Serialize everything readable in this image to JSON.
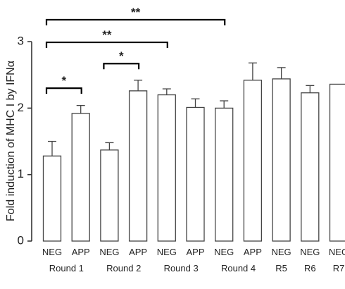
{
  "chart_data": {
    "type": "bar",
    "ylabel": "Fold induction of MHC I by IFNα",
    "ylim": [
      0,
      3
    ],
    "yticks": [
      0,
      1,
      2,
      3
    ],
    "categories": [
      "NEG",
      "APP",
      "NEG",
      "APP",
      "NEG",
      "APP",
      "NEG",
      "APP",
      "NEG",
      "NEG",
      "NEG"
    ],
    "values": [
      1.28,
      1.92,
      1.37,
      2.26,
      2.2,
      2.01,
      2.0,
      2.42,
      2.44,
      2.23,
      2.36
    ],
    "errors": [
      0.22,
      0.12,
      0.11,
      0.16,
      0.09,
      0.13,
      0.11,
      0.26,
      0.17,
      0.11,
      0
    ],
    "groups": [
      {
        "label": "Round 1",
        "start": 0,
        "end": 1
      },
      {
        "label": "Round 2",
        "start": 2,
        "end": 3
      },
      {
        "label": "Round 3",
        "start": 4,
        "end": 5
      },
      {
        "label": "Round 4",
        "start": 6,
        "end": 7
      },
      {
        "label": "R5",
        "start": 8,
        "end": 8
      },
      {
        "label": "R6",
        "start": 9,
        "end": 9
      },
      {
        "label": "R7",
        "start": 10,
        "end": 10
      }
    ],
    "significance": [
      {
        "from": 0,
        "to": 1,
        "label": "*",
        "level": 2.3
      },
      {
        "from": 2,
        "to": 3,
        "label": "*",
        "level": 2.67
      },
      {
        "from": 0,
        "to": 4,
        "label": "**",
        "level": 2.99
      },
      {
        "from": 0,
        "to": 6,
        "label": "**",
        "level": 3.33
      }
    ]
  }
}
